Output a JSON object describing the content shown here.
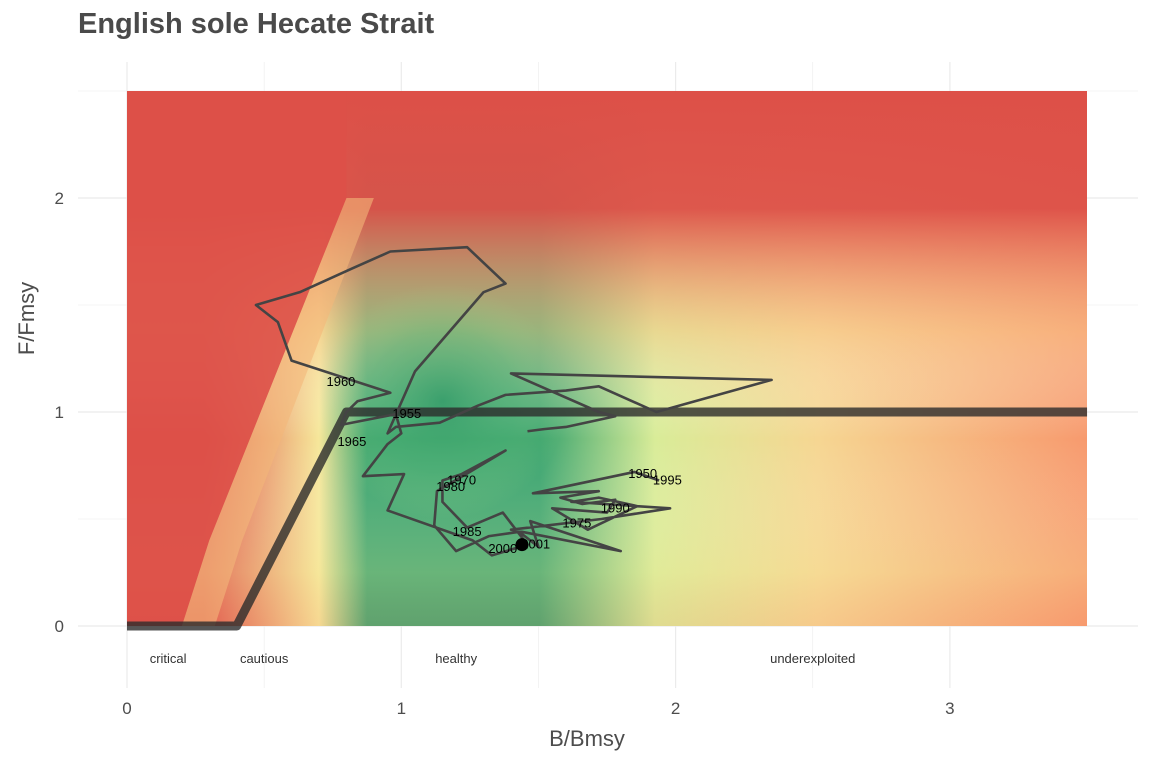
{
  "chart_data": {
    "type": "line",
    "title": "English sole Hecate Strait",
    "xlabel": "B/Bmsy",
    "ylabel": "F/Fmsy",
    "xlim": [
      0,
      3.5
    ],
    "ylim": [
      0,
      2.5
    ],
    "x_ticks": [
      "0",
      "1",
      "2",
      "3"
    ],
    "y_ticks": [
      "0",
      "1",
      "2"
    ],
    "grid": true,
    "colors": {
      "overfishing": "#dd5048",
      "healthy_core": "#3aa46e",
      "caution": "#f6e79a",
      "underexploited": "#f79a6e",
      "path": "#444444",
      "reference": "#2c2c2c"
    },
    "zone_labels": [
      "critical",
      "cautious",
      "healthy",
      "underexploited"
    ],
    "reference_line": {
      "x": [
        0,
        0.4,
        0.8,
        3.5
      ],
      "y": [
        0,
        0,
        1,
        1
      ]
    },
    "trajectory": {
      "x": [
        1.94,
        1.85,
        1.48,
        1.72,
        1.58,
        1.66,
        1.78,
        1.75,
        1.55,
        1.68,
        1.86,
        1.72,
        1.62,
        1.98,
        1.73,
        1.4,
        1.8,
        1.47,
        1.5,
        1.43,
        1.32,
        1.2,
        1.12,
        1.13,
        1.25,
        1.38,
        1.22,
        1.15,
        1.15,
        1.24,
        1.37,
        1.46,
        1.33,
        1.26,
        0.95,
        1.01,
        0.86,
        0.95,
        1.0,
        0.98,
        0.78,
        0.8,
        0.84,
        0.96,
        0.6,
        0.55,
        0.47,
        0.63,
        0.82,
        0.96,
        1.24,
        1.38,
        1.3,
        1.05,
        0.95,
        0.98,
        1.14,
        1.28,
        1.38,
        1.6,
        1.72,
        1.93,
        2.35,
        1.4,
        1.72,
        1.78,
        1.6,
        1.52,
        1.46
      ],
      "y": [
        0.68,
        0.72,
        0.62,
        0.63,
        0.6,
        0.57,
        0.59,
        0.53,
        0.55,
        0.45,
        0.56,
        0.6,
        0.58,
        0.55,
        0.5,
        0.45,
        0.35,
        0.49,
        0.37,
        0.44,
        0.42,
        0.35,
        0.47,
        0.63,
        0.72,
        0.82,
        0.71,
        0.68,
        0.58,
        0.46,
        0.53,
        0.38,
        0.33,
        0.4,
        0.54,
        0.71,
        0.7,
        0.85,
        0.9,
        0.99,
        0.94,
        1.0,
        1.05,
        1.09,
        1.24,
        1.42,
        1.5,
        1.56,
        1.67,
        1.75,
        1.77,
        1.6,
        1.56,
        1.19,
        0.9,
        0.93,
        0.95,
        1.03,
        1.08,
        1.1,
        1.12,
        1.0,
        1.15,
        1.18,
        1.0,
        0.98,
        0.93,
        0.92,
        0.91
      ]
    },
    "year_labels": [
      {
        "year": "1950",
        "x": 1.88,
        "y": 0.71
      },
      {
        "year": "1955",
        "x": 1.02,
        "y": 0.99
      },
      {
        "year": "1960",
        "x": 0.78,
        "y": 1.14
      },
      {
        "year": "1965",
        "x": 0.82,
        "y": 0.86
      },
      {
        "year": "1970",
        "x": 1.22,
        "y": 0.68
      },
      {
        "year": "1975",
        "x": 1.64,
        "y": 0.48
      },
      {
        "year": "1980",
        "x": 1.18,
        "y": 0.65
      },
      {
        "year": "1985",
        "x": 1.24,
        "y": 0.44
      },
      {
        "year": "1990",
        "x": 1.78,
        "y": 0.55
      },
      {
        "year": "1995",
        "x": 1.97,
        "y": 0.68
      },
      {
        "year": "2000",
        "x": 1.37,
        "y": 0.36
      },
      {
        "year": "2001",
        "x": 1.49,
        "y": 0.38
      }
    ],
    "current_point": {
      "x": 1.44,
      "y": 0.38
    }
  }
}
